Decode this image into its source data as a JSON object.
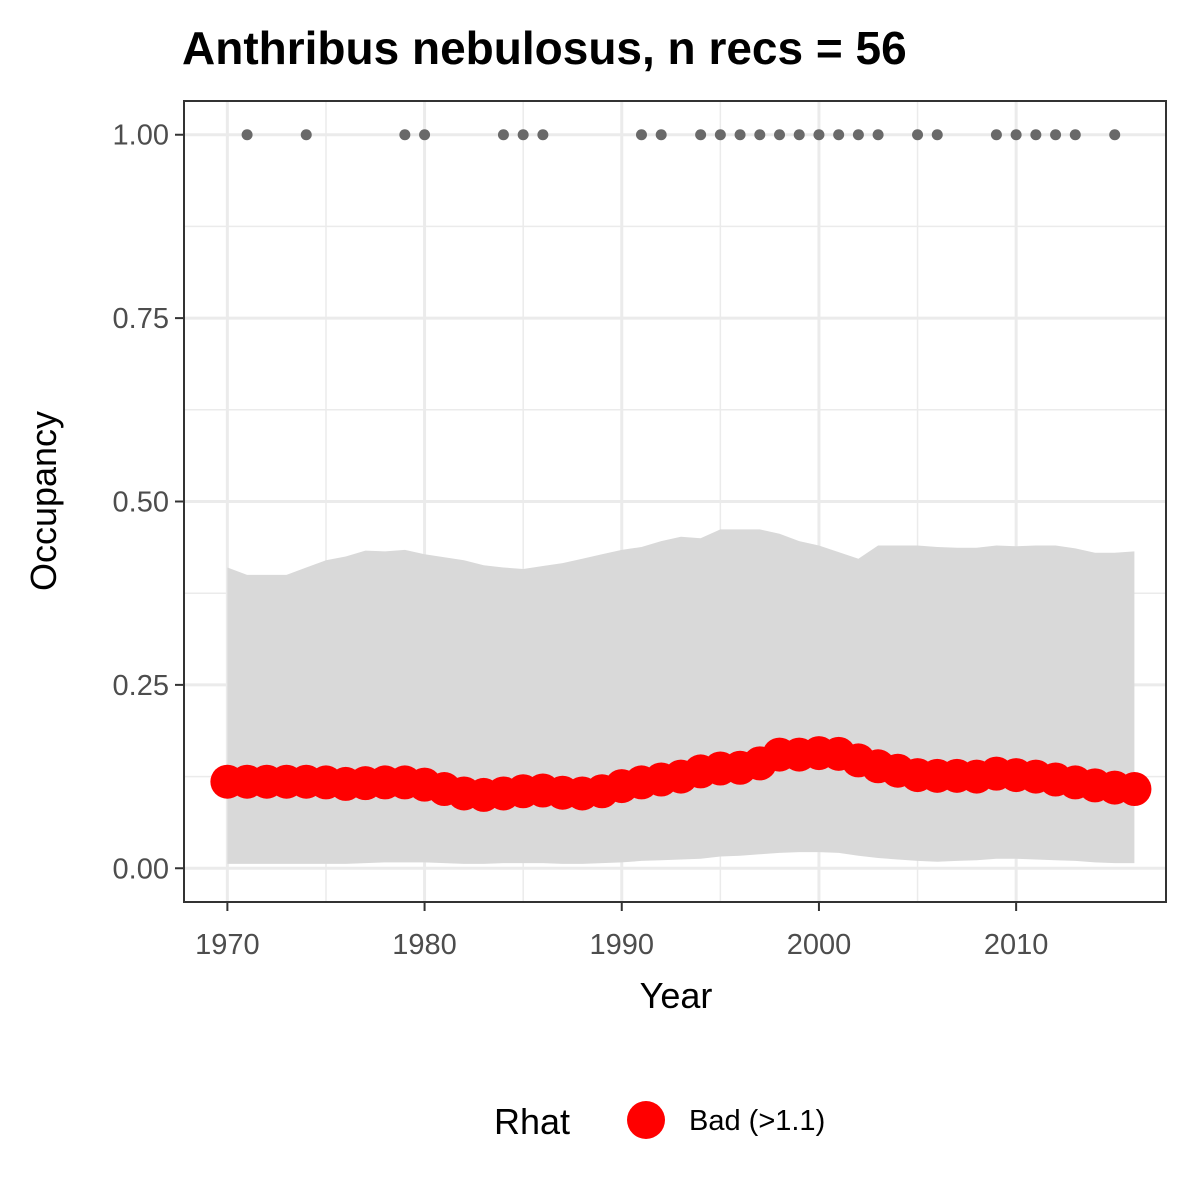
{
  "chart_data": {
    "type": "line",
    "title": "Anthribus nebulosus, n recs = 56",
    "xlabel": "Year",
    "ylabel": "Occupancy",
    "xlim": [
      1967.8,
      2017.6
    ],
    "ylim": [
      -0.046,
      1.046
    ],
    "x_ticks": [
      1970,
      1980,
      1990,
      2000,
      2010
    ],
    "x_tick_labels": [
      "1970",
      "1980",
      "1990",
      "2000",
      "2010"
    ],
    "y_ticks": [
      0,
      0.25,
      0.5,
      0.75,
      1.0
    ],
    "y_tick_labels": [
      "0.00",
      "0.25",
      "0.50",
      "0.75",
      "1.00"
    ],
    "grid": true,
    "legend": {
      "title": "Rhat",
      "position": "bottom",
      "entries": [
        {
          "label": "Bad (>1.1)",
          "color": "#ff0000"
        }
      ]
    },
    "years": [
      1970,
      1971,
      1972,
      1973,
      1974,
      1975,
      1976,
      1977,
      1978,
      1979,
      1980,
      1981,
      1982,
      1983,
      1984,
      1985,
      1986,
      1987,
      1988,
      1989,
      1990,
      1991,
      1992,
      1993,
      1994,
      1995,
      1996,
      1997,
      1998,
      1999,
      2000,
      2001,
      2002,
      2003,
      2004,
      2005,
      2006,
      2007,
      2008,
      2009,
      2010,
      2011,
      2012,
      2013,
      2014,
      2015,
      2016
    ],
    "series": [
      {
        "type": "line-points",
        "color": "#ff0000",
        "rhat": "Bad (>1.1)",
        "values": [
          0.118,
          0.118,
          0.118,
          0.118,
          0.118,
          0.117,
          0.115,
          0.116,
          0.117,
          0.117,
          0.114,
          0.108,
          0.102,
          0.1,
          0.102,
          0.105,
          0.106,
          0.103,
          0.102,
          0.105,
          0.112,
          0.117,
          0.121,
          0.125,
          0.132,
          0.136,
          0.137,
          0.143,
          0.155,
          0.155,
          0.157,
          0.156,
          0.147,
          0.139,
          0.133,
          0.127,
          0.126,
          0.126,
          0.125,
          0.129,
          0.127,
          0.125,
          0.121,
          0.117,
          0.113,
          0.11,
          0.108
        ]
      },
      {
        "type": "ribbon",
        "color": "#d9d9d9",
        "lower": [
          0.006,
          0.006,
          0.006,
          0.006,
          0.006,
          0.006,
          0.006,
          0.007,
          0.008,
          0.008,
          0.008,
          0.007,
          0.006,
          0.006,
          0.007,
          0.007,
          0.007,
          0.006,
          0.006,
          0.007,
          0.008,
          0.01,
          0.011,
          0.012,
          0.013,
          0.016,
          0.017,
          0.019,
          0.021,
          0.022,
          0.022,
          0.021,
          0.017,
          0.014,
          0.012,
          0.01,
          0.009,
          0.01,
          0.011,
          0.013,
          0.013,
          0.012,
          0.011,
          0.01,
          0.008,
          0.007,
          0.007
        ],
        "upper": [
          0.41,
          0.4,
          0.4,
          0.4,
          0.41,
          0.42,
          0.425,
          0.433,
          0.432,
          0.434,
          0.428,
          0.424,
          0.42,
          0.413,
          0.41,
          0.408,
          0.412,
          0.416,
          0.422,
          0.428,
          0.434,
          0.438,
          0.446,
          0.452,
          0.45,
          0.462,
          0.462,
          0.462,
          0.456,
          0.446,
          0.44,
          0.431,
          0.422,
          0.44,
          0.44,
          0.44,
          0.438,
          0.437,
          0.437,
          0.44,
          0.439,
          0.44,
          0.44,
          0.436,
          0.43,
          0.43,
          0.432
        ]
      },
      {
        "type": "points",
        "color": "#696969",
        "description": "records",
        "x": [
          1971,
          1974,
          1979,
          1980,
          1984,
          1985,
          1986,
          1991,
          1992,
          1994,
          1995,
          1996,
          1997,
          1998,
          1999,
          2000,
          2001,
          2002,
          2003,
          2005,
          2006,
          2009,
          2010,
          2011,
          2012,
          2013,
          2015
        ],
        "y": [
          1,
          1,
          1,
          1,
          1,
          1,
          1,
          1,
          1,
          1,
          1,
          1,
          1,
          1,
          1,
          1,
          1,
          1,
          1,
          1,
          1,
          1,
          1,
          1,
          1,
          1,
          1
        ]
      }
    ]
  }
}
